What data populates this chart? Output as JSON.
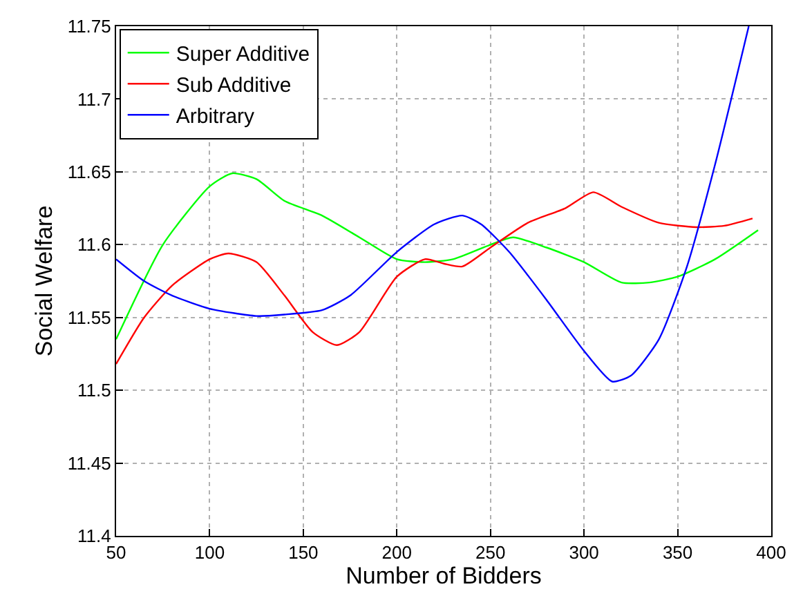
{
  "chart_data": {
    "type": "line",
    "xlabel": "Number of Bidders",
    "ylabel": "Social Welfare",
    "xlim": [
      50,
      400
    ],
    "xticks": [
      50,
      100,
      150,
      200,
      250,
      300,
      350,
      400
    ],
    "ylim": [
      11.4,
      11.75
    ],
    "yticks": [
      11.4,
      11.45,
      11.5,
      11.55,
      11.6,
      11.65,
      11.7,
      11.75
    ],
    "grid": true,
    "legend": "top left",
    "marker": "none",
    "line_style": "solid",
    "series": [
      {
        "name": "Super Additive",
        "color": "#00ff00",
        "x": [
          50,
          75,
          100,
          112,
          125,
          140,
          160,
          180,
          200,
          215,
          230,
          250,
          262,
          280,
          300,
          320,
          335,
          350,
          370,
          393
        ],
        "values": [
          11.535,
          11.6,
          11.64,
          11.649,
          11.645,
          11.63,
          11.62,
          11.605,
          11.59,
          11.588,
          11.59,
          11.6,
          11.605,
          11.598,
          11.588,
          11.574,
          11.574,
          11.578,
          11.59,
          11.61
        ]
      },
      {
        "name": "Sub Additive",
        "color": "#ff0000",
        "x": [
          50,
          65,
          80,
          100,
          110,
          125,
          140,
          155,
          168,
          180,
          200,
          215,
          225,
          235,
          250,
          270,
          290,
          305,
          320,
          340,
          360,
          375,
          390
        ],
        "values": [
          11.518,
          11.55,
          11.572,
          11.59,
          11.594,
          11.588,
          11.565,
          11.54,
          11.531,
          11.54,
          11.578,
          11.59,
          11.587,
          11.585,
          11.598,
          11.615,
          11.625,
          11.636,
          11.626,
          11.615,
          11.612,
          11.613,
          11.618
        ]
      },
      {
        "name": "Arbitrary",
        "color": "#0000ff",
        "x": [
          50,
          65,
          80,
          100,
          125,
          140,
          160,
          175,
          200,
          220,
          235,
          245,
          260,
          280,
          300,
          315,
          325,
          340,
          355,
          370,
          388
        ],
        "values": [
          11.59,
          11.575,
          11.565,
          11.556,
          11.551,
          11.552,
          11.555,
          11.565,
          11.595,
          11.614,
          11.62,
          11.614,
          11.595,
          11.562,
          11.527,
          11.506,
          11.51,
          11.535,
          11.585,
          11.655,
          11.75
        ]
      }
    ]
  }
}
